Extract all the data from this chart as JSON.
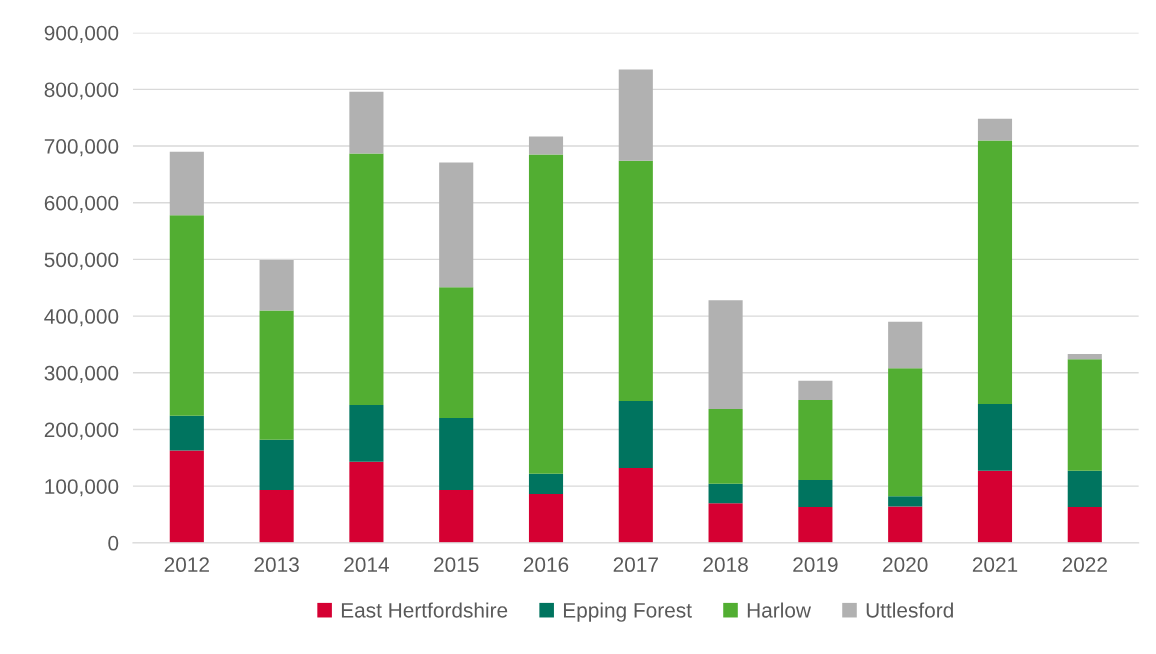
{
  "chart_data": {
    "type": "bar",
    "stacked": true,
    "categories": [
      "2012",
      "2013",
      "2014",
      "2015",
      "2016",
      "2017",
      "2018",
      "2019",
      "2020",
      "2021",
      "2022"
    ],
    "series": [
      {
        "name": "East Hertfordshire",
        "color": "#d50032",
        "values": [
          163000,
          93000,
          143000,
          93000,
          86000,
          132000,
          70000,
          63000,
          64000,
          127000,
          63000
        ]
      },
      {
        "name": "Epping Forest",
        "color": "#00745f",
        "values": [
          61000,
          89000,
          100000,
          127000,
          36000,
          118000,
          34000,
          48000,
          18000,
          118000,
          64000
        ]
      },
      {
        "name": "Harlow",
        "color": "#52ae32",
        "values": [
          354000,
          228000,
          444000,
          231000,
          563000,
          424000,
          132000,
          141000,
          226000,
          465000,
          197000
        ]
      },
      {
        "name": "Uttlesford",
        "color": "#b1b1b1",
        "values": [
          112000,
          89000,
          109000,
          220000,
          32000,
          161000,
          192000,
          34000,
          82000,
          38000,
          9000
        ]
      }
    ],
    "ylim": [
      0,
      900000
    ],
    "yticks": [
      {
        "value": 0,
        "label": "0"
      },
      {
        "value": 100000,
        "label": "100,000"
      },
      {
        "value": 200000,
        "label": "200,000"
      },
      {
        "value": 300000,
        "label": "300,000"
      },
      {
        "value": 400000,
        "label": "400,000"
      },
      {
        "value": 500000,
        "label": "500,000"
      },
      {
        "value": 600000,
        "label": "600,000"
      },
      {
        "value": 700000,
        "label": "700,000"
      },
      {
        "value": 800000,
        "label": "800,000"
      },
      {
        "value": 900000,
        "label": "900,000"
      }
    ],
    "grid": "y",
    "legend": "bottom"
  }
}
